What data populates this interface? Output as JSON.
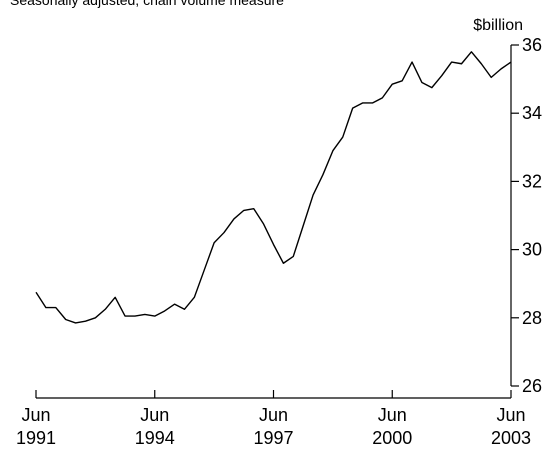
{
  "caption": "Seasonally adjusted, chain volume measure",
  "chart_data": {
    "type": "line",
    "unit_label": "$billion",
    "ylim": [
      26,
      36
    ],
    "y_ticks": [
      26,
      28,
      30,
      32,
      34,
      36
    ],
    "x_ticks": [
      {
        "month": "Jun",
        "year": "1991",
        "t": 1991.5
      },
      {
        "month": "Jun",
        "year": "1994",
        "t": 1994.5
      },
      {
        "month": "Jun",
        "year": "1997",
        "t": 1997.5
      },
      {
        "month": "Jun",
        "year": "2000",
        "t": 2000.5
      },
      {
        "month": "Jun",
        "year": "2003",
        "t": 2003.5
      }
    ],
    "xlim": [
      1991.5,
      2003.5
    ],
    "grid": false,
    "series": [
      {
        "x": [
          "Jun 1991",
          "Sep 1991",
          "Dec 1991",
          "Mar 1992",
          "Jun 1992",
          "Sep 1992",
          "Dec 1992",
          "Mar 1993",
          "Jun 1993",
          "Sep 1993",
          "Dec 1993",
          "Mar 1994",
          "Jun 1994",
          "Sep 1994",
          "Dec 1994",
          "Mar 1995",
          "Jun 1995",
          "Sep 1995",
          "Dec 1995",
          "Mar 1996",
          "Jun 1996",
          "Sep 1996",
          "Dec 1996",
          "Mar 1997",
          "Jun 1997",
          "Sep 1997",
          "Dec 1997",
          "Mar 1998",
          "Jun 1998",
          "Sep 1998",
          "Dec 1998",
          "Mar 1999",
          "Jun 1999",
          "Sep 1999",
          "Dec 1999",
          "Mar 2000",
          "Jun 2000",
          "Sep 2000",
          "Dec 2000",
          "Mar 2001",
          "Jun 2001",
          "Sep 2001",
          "Dec 2001",
          "Mar 2002",
          "Jun 2002",
          "Sep 2002",
          "Dec 2002",
          "Mar 2003",
          "Jun 2003"
        ],
        "t": [
          1991.5,
          1991.75,
          1992.0,
          1992.25,
          1992.5,
          1992.75,
          1993.0,
          1993.25,
          1993.5,
          1993.75,
          1994.0,
          1994.25,
          1994.5,
          1994.75,
          1995.0,
          1995.25,
          1995.5,
          1995.75,
          1996.0,
          1996.25,
          1996.5,
          1996.75,
          1997.0,
          1997.25,
          1997.5,
          1997.75,
          1998.0,
          1998.25,
          1998.5,
          1998.75,
          1999.0,
          1999.25,
          1999.5,
          1999.75,
          2000.0,
          2000.25,
          2000.5,
          2000.75,
          2001.0,
          2001.25,
          2001.5,
          2001.75,
          2002.0,
          2002.25,
          2002.5,
          2002.75,
          2003.0,
          2003.25,
          2003.5
        ],
        "values": [
          28.75,
          28.3,
          28.3,
          27.95,
          27.85,
          27.9,
          28.0,
          28.25,
          28.6,
          28.05,
          28.05,
          28.1,
          28.05,
          28.2,
          28.4,
          28.25,
          28.6,
          29.4,
          30.2,
          30.5,
          30.9,
          31.15,
          31.2,
          30.75,
          30.15,
          29.6,
          29.8,
          30.7,
          31.6,
          32.2,
          32.9,
          33.3,
          34.15,
          34.3,
          34.3,
          34.45,
          34.85,
          34.95,
          35.5,
          34.9,
          34.75,
          35.1,
          35.5,
          35.45,
          35.8,
          35.45,
          35.05,
          35.3,
          35.5
        ]
      }
    ]
  }
}
